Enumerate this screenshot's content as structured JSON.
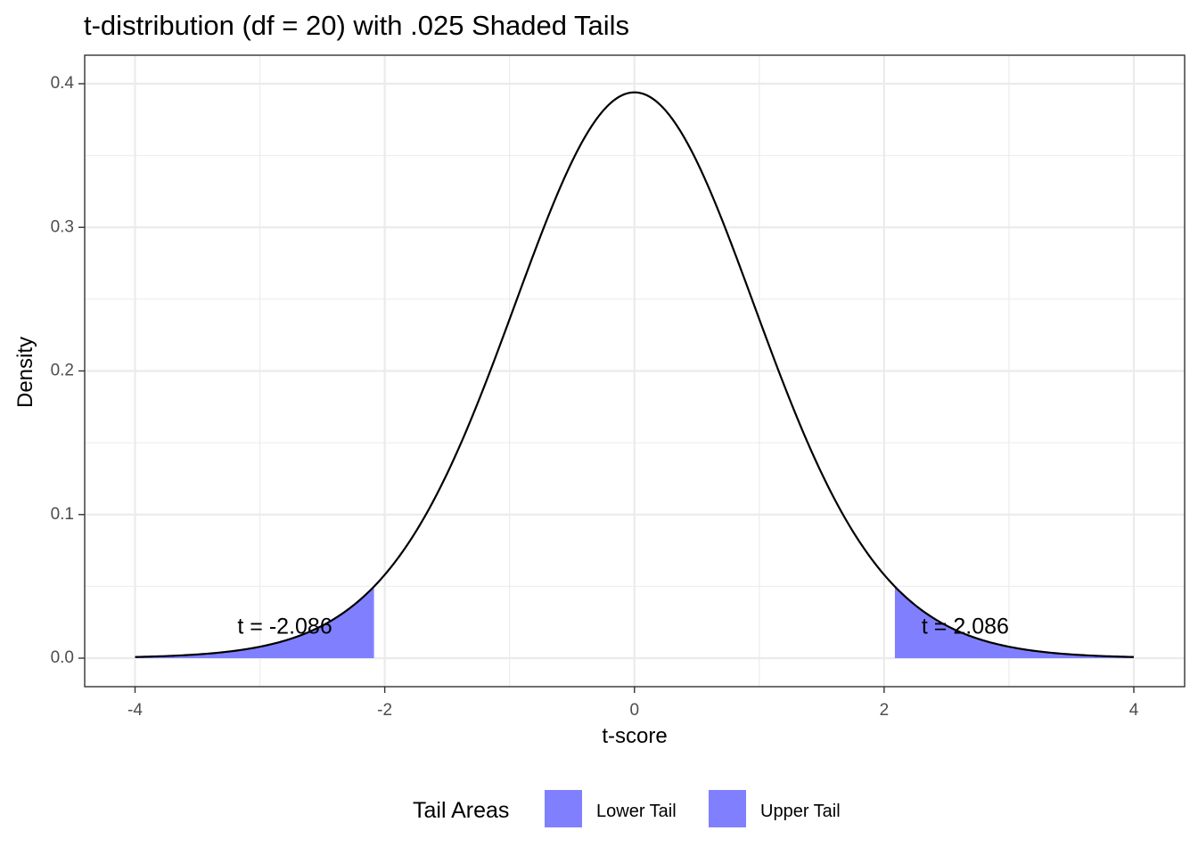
{
  "chart_data": {
    "type": "area",
    "title": "t-distribution (df = 20) with .025 Shaded Tails",
    "xlabel": "t-score",
    "ylabel": "Density",
    "df": 20,
    "xlim": [
      -4,
      4
    ],
    "ylim": [
      0,
      0.4
    ],
    "x_ticks": [
      -4,
      -2,
      0,
      2,
      4
    ],
    "y_ticks": [
      0.0,
      0.1,
      0.2,
      0.3,
      0.4
    ],
    "x_tick_labels": [
      "-4",
      "-2",
      "0",
      "2",
      "4"
    ],
    "y_tick_labels": [
      "0.0",
      "0.1",
      "0.2",
      "0.3",
      "0.4"
    ],
    "grid": true,
    "series": [
      {
        "name": "Lower Tail",
        "x_range": [
          -4,
          -2.086
        ],
        "color": "#8080ff"
      },
      {
        "name": "Upper Tail",
        "x_range": [
          2.086,
          4
        ],
        "color": "#8080ff"
      }
    ],
    "annotations": [
      {
        "x": -2.8,
        "y": 0.021,
        "text": "t = -2.086"
      },
      {
        "x": 2.65,
        "y": 0.021,
        "text": "t = 2.086"
      }
    ],
    "legend": {
      "title": "Tail Areas",
      "position": "bottom",
      "items": [
        "Lower Tail",
        "Upper Tail"
      ]
    },
    "colors": {
      "fill": "#8080ff",
      "curve": "#000000",
      "grid": "#ebebeb",
      "border": "#333333"
    }
  }
}
